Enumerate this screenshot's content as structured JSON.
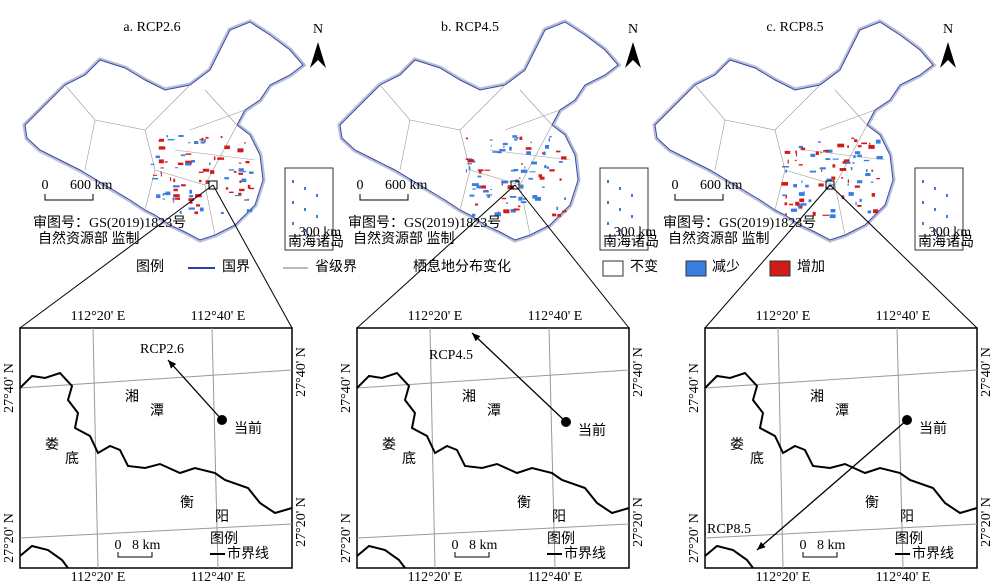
{
  "panels": [
    {
      "title": "a. RCP2.6",
      "arrow_label": "RCP2.6"
    },
    {
      "title": "b. RCP4.5",
      "arrow_label": "RCP4.5"
    },
    {
      "title": "c. RCP8.5",
      "arrow_label": "RCP8.5"
    }
  ],
  "map": {
    "north": "N",
    "scale_zero": "0",
    "scale_length": "600 km",
    "review_number": "审图号：GS(2019)1823号",
    "supervisor": "自然资源部 监制",
    "inset_scale": "300 km",
    "inset_label": "南海诸岛"
  },
  "legend": {
    "title": "图例",
    "national_border": "国界",
    "provincial_border": "省级界",
    "change_title": "栖息地分布变化",
    "unchanged": "不变",
    "decrease": "减少",
    "increase": "增加"
  },
  "detail": {
    "lon_ticks": [
      "112°20' E",
      "112°40' E"
    ],
    "lat_ticks": [
      "27°40' N",
      "27°20' N"
    ],
    "xiangtan": [
      "湘",
      "潭"
    ],
    "loudi": [
      "娄",
      "底"
    ],
    "hengyang": [
      "衡",
      "阳"
    ],
    "current": "当前",
    "scale_zero": "0",
    "scale_length": "8 km",
    "legend_title": "图例",
    "legend_city": "市界线"
  }
}
